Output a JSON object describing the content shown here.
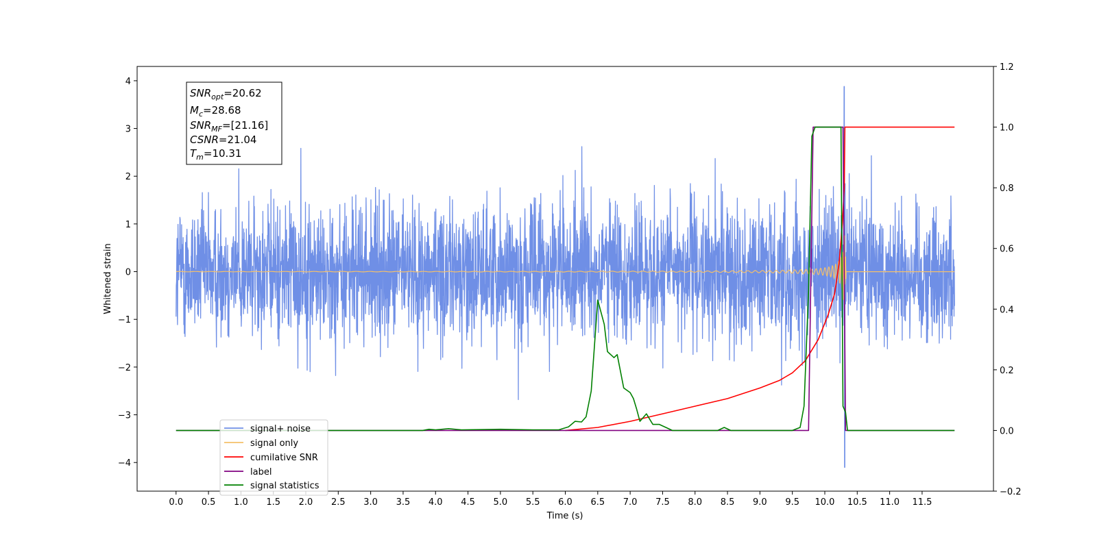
{
  "chart_data": {
    "type": "line",
    "xlabel": "Time (s)",
    "ylabel": "Whitened strain",
    "xlim": [
      -0.6,
      12.6
    ],
    "ylim": [
      -4.6,
      4.3
    ],
    "y2lim": [
      -0.2,
      1.2
    ],
    "x_ticks": [
      0.0,
      0.5,
      1.0,
      1.5,
      2.0,
      2.5,
      3.0,
      3.5,
      4.0,
      4.5,
      5.0,
      5.5,
      6.0,
      6.5,
      7.0,
      7.5,
      8.0,
      8.5,
      9.0,
      9.5,
      10.0,
      10.5,
      11.0,
      11.5
    ],
    "x_tick_labels": [
      "0.0",
      "0.5",
      "1.0",
      "1.5",
      "2.0",
      "2.5",
      "3.0",
      "3.5",
      "4.0",
      "4.5",
      "5.0",
      "5.5",
      "6.0",
      "6.5",
      "7.0",
      "7.5",
      "8.0",
      "8.5",
      "9.0",
      "9.5",
      "10.0",
      "10.5",
      "11.0",
      "11.5"
    ],
    "y_ticks": [
      4,
      3,
      2,
      1,
      0,
      -1,
      -2,
      -3,
      -4
    ],
    "y_tick_labels": [
      "4",
      "3",
      "2",
      "1",
      "0",
      "−1",
      "−2",
      "−3",
      "−4"
    ],
    "y2_ticks": [
      1.2,
      1.0,
      0.8,
      0.6,
      0.4,
      0.2,
      0.0,
      -0.2
    ],
    "y2_tick_labels": [
      "1.2",
      "1.0",
      "0.8",
      "0.6",
      "0.4",
      "0.2",
      "0.0",
      "−0.2"
    ],
    "legend_placement": "lower-left",
    "annotations": {
      "snr_opt": {
        "sym": "SNR",
        "sub": "opt",
        "val": "=20.62"
      },
      "mc": {
        "sym": "M",
        "sub": "c",
        "val": "=28.68"
      },
      "snr_mf": {
        "sym": "SNR",
        "sub": "MF",
        "val": "=[21.16]"
      },
      "csnr": {
        "sym": "CSNR",
        "sub": "",
        "val": "=21.04"
      },
      "tm": {
        "sym": "T",
        "sub": "m",
        "val": "=10.31"
      }
    },
    "series": [
      {
        "name": "signal+ noise",
        "axis": "left",
        "color": "#6f8fe6",
        "style": "noise",
        "x_range": [
          0.0,
          12.0
        ],
        "amplitude": 1.2,
        "peak": {
          "x": 10.3,
          "y": 3.88
        }
      },
      {
        "name": "signal only",
        "axis": "left",
        "color": "#f5c06a",
        "style": "chirp",
        "x_range": [
          0.0,
          12.0
        ],
        "merger_time": 10.3,
        "peak_amplitude": 1.0
      },
      {
        "name": "cumilative SNR",
        "axis": "right",
        "color": "#ff0000",
        "x": [
          6.0,
          6.5,
          7.0,
          7.5,
          8.0,
          8.5,
          9.0,
          9.3,
          9.5,
          9.7,
          9.9,
          10.05,
          10.15,
          10.22,
          10.27,
          10.3,
          10.31,
          12.0
        ],
        "y": [
          0.0,
          0.01,
          0.03,
          0.055,
          0.08,
          0.105,
          0.14,
          0.165,
          0.19,
          0.23,
          0.3,
          0.38,
          0.45,
          0.55,
          0.68,
          0.8,
          1.0,
          1.0
        ]
      },
      {
        "name": "label",
        "axis": "right",
        "color": "#800080",
        "x": [
          0.0,
          9.75,
          9.82,
          10.28,
          10.32,
          12.0
        ],
        "y": [
          0.0,
          0.0,
          1.0,
          1.0,
          0.0,
          0.0
        ]
      },
      {
        "name": "signal statistics",
        "axis": "right",
        "color": "#008000",
        "x": [
          0.0,
          3.8,
          3.9,
          4.0,
          4.2,
          4.4,
          5.0,
          5.5,
          5.9,
          6.05,
          6.15,
          6.25,
          6.32,
          6.4,
          6.5,
          6.6,
          6.65,
          6.75,
          6.8,
          6.9,
          7.0,
          7.05,
          7.1,
          7.15,
          7.25,
          7.35,
          7.45,
          7.55,
          7.65,
          8.35,
          8.45,
          8.55,
          9.5,
          9.62,
          9.68,
          9.75,
          9.8,
          9.85,
          10.0,
          10.25,
          10.28,
          10.32,
          10.35,
          12.0
        ],
        "y": [
          0.0,
          0.0,
          0.004,
          0.002,
          0.006,
          0.002,
          0.004,
          0.002,
          0.002,
          0.012,
          0.03,
          0.028,
          0.045,
          0.13,
          0.43,
          0.35,
          0.26,
          0.24,
          0.25,
          0.14,
          0.125,
          0.105,
          0.07,
          0.03,
          0.055,
          0.02,
          0.02,
          0.01,
          0.0,
          0.0,
          0.01,
          0.0,
          0.0,
          0.01,
          0.08,
          0.46,
          0.97,
          1.0,
          1.0,
          1.0,
          0.08,
          0.06,
          0.0,
          0.0
        ]
      }
    ]
  }
}
